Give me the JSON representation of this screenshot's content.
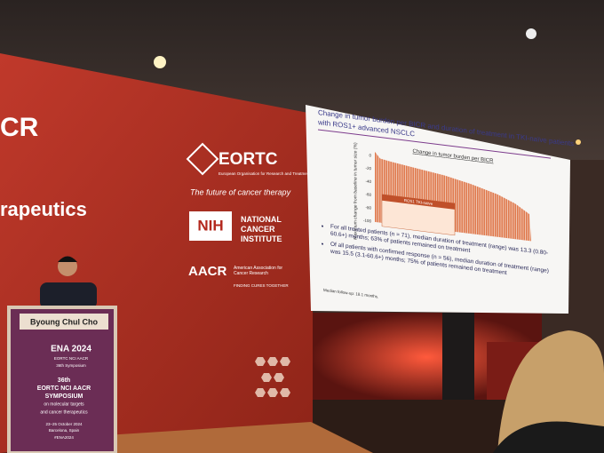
{
  "wall": {
    "partial_title": "CR",
    "partial_subtitle": "rapeutics",
    "logos": [
      {
        "name": "EORTC",
        "tagline": "European Organisation for Research and Treatment of Cancer",
        "motto": "The future of cancer therapy"
      },
      {
        "name": "NIH",
        "tagline": "NATIONAL CANCER INSTITUTE"
      },
      {
        "name": "AACR",
        "tagline": "American Association for Cancer Research",
        "motto": "FINDING CURES TOGETHER"
      }
    ]
  },
  "podium": {
    "speaker": "Byoung Chul Cho",
    "brand": "ENA 2024",
    "organizers": "EORTC NCI AACR",
    "edition": "36th Symposium",
    "symposium_lines": [
      "36th",
      "EORTC NCI AACR",
      "SYMPOSIUM",
      "on molecular targets",
      "and cancer therapeutics"
    ],
    "dates": "23–25 October 2024",
    "place": "Barcelona, Spain",
    "hashtag": "#ENA2024"
  },
  "slide": {
    "title_lines": [
      "Change in tumor burden per BICR and duration of treatment in TKI-naïve patients",
      "with ROS1+ advanced NSCLC"
    ],
    "chart_title": "Change in tumor burden per BICR",
    "y_axis_label": "Maximum change from baseline in tumor size (%)",
    "y_ticks": [
      "0",
      "-20",
      "-40",
      "-60",
      "-80",
      "-100"
    ],
    "table_header": "ROS1 TKI-naive",
    "bullets": [
      "For all treated patients (n = 71), median duration of treatment (range) was 13.3 (0.80-60.6+) months; 63% of patients remained on treatment",
      "Of all patients with confirmed response (n = 56), median duration of treatment (range) was 15.5 (3.1-60.6+) months; 75% of patients remained on treatment"
    ],
    "footnote": "Median follow-up: 18.1 months."
  }
}
